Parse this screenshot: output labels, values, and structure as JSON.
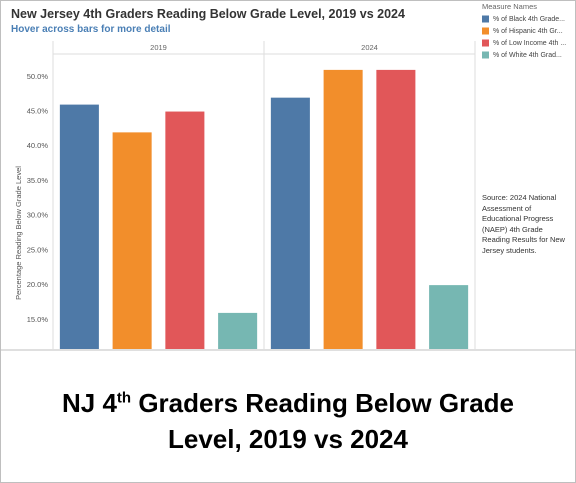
{
  "chart_data": {
    "type": "bar",
    "title": "New Jersey 4th Graders Reading Below Grade Level, 2019 vs 2024",
    "subtitle": "Hover across bars for more detail",
    "y_label": "Percentage Reading Below Grade Level",
    "legend_title": "Measure Names",
    "legend_position": "top-right",
    "grid": false,
    "categories": [
      "2019",
      "2024"
    ],
    "series": [
      {
        "name": "% of Black 4th Grade...",
        "color": "#4e79a7",
        "values": [
          46,
          47
        ]
      },
      {
        "name": "% of Hispanic 4th Gr...",
        "color": "#f28e2b",
        "values": [
          42,
          51
        ]
      },
      {
        "name": "% of Low Income 4th ...",
        "color": "#e15759",
        "values": [
          45,
          51
        ]
      },
      {
        "name": "% of White 4th Grad...",
        "color": "#76b7b2",
        "values": [
          16,
          20
        ]
      }
    ],
    "ylim": [
      10.8,
      53
    ],
    "yticks": [
      {
        "value": 15,
        "label": "15.0%"
      },
      {
        "value": 20,
        "label": "20.0%"
      },
      {
        "value": 25,
        "label": "25.0%"
      },
      {
        "value": 30,
        "label": "30.0%"
      },
      {
        "value": 35,
        "label": "35.0%"
      },
      {
        "value": 40,
        "label": "40.0%"
      },
      {
        "value": 45,
        "label": "45.0%"
      },
      {
        "value": 50,
        "label": "50.0%"
      }
    ],
    "source": "Source: 2024 National Assessment of Educational Progress (NAEP) 4th Grade Reading Results for New Jersey students."
  },
  "caption": {
    "lead": "NJ 4",
    "sup": "th",
    "rest": "Graders Reading Below Grade",
    "line2": "Level, 2019 vs 2024"
  }
}
